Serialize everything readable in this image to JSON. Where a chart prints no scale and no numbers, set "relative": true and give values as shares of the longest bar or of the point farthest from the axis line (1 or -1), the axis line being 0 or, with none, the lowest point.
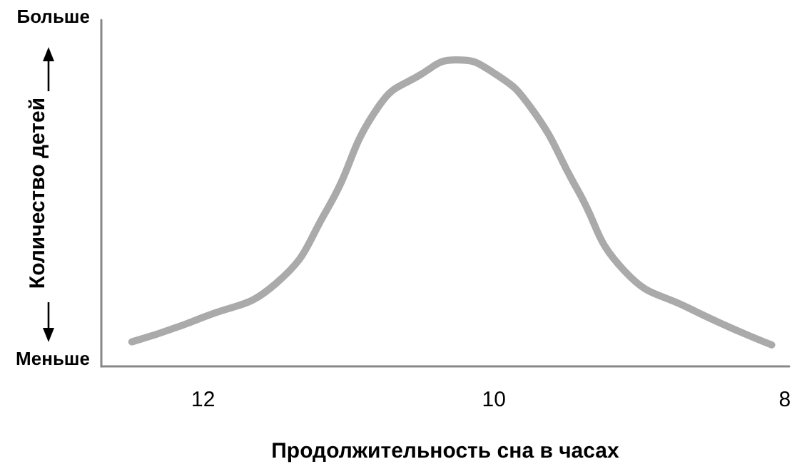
{
  "chart_data": {
    "type": "line",
    "relative": true,
    "xlabel": "Продолжительность сна в часах",
    "ylabel": "Количество детей",
    "annotations": [
      "Больше",
      "Меньше"
    ],
    "x": [
      12.49,
      12,
      11.5,
      11.15,
      10.79,
      10.51,
      10.26,
      10.01,
      9.74,
      9.43,
      9.1,
      8.66,
      8.09
    ],
    "series": [
      {
        "color": "#aaaaaa",
        "values": [
          0.08,
          0.16,
          0.27,
          0.51,
          0.85,
          0.95,
          1,
          0.96,
          0.84,
          0.58,
          0.31,
          0.19,
          0.07
        ]
      }
    ],
    "xlim": [
      12.7,
      7.97
    ],
    "xticks": [
      12,
      10,
      8
    ],
    "grid": false,
    "marker": "none",
    "line_style": "solid"
  }
}
